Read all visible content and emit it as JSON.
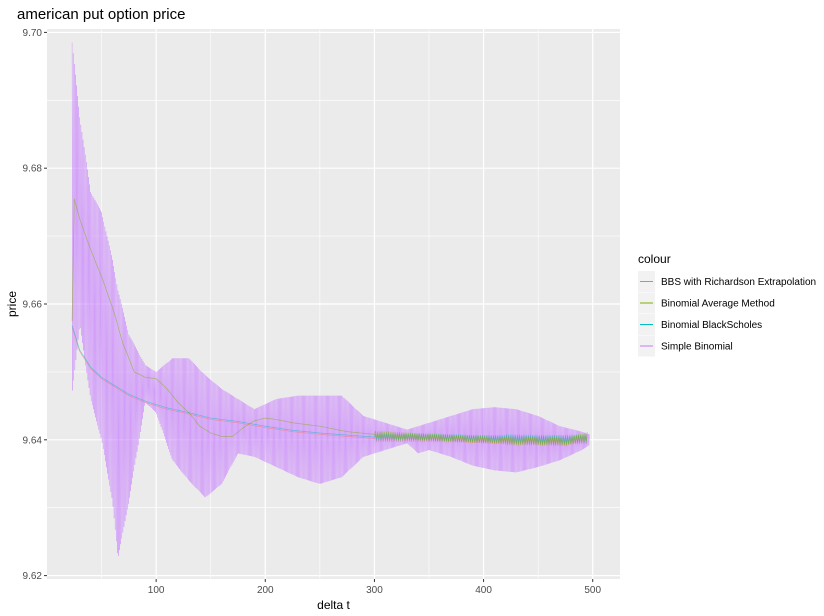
{
  "chart_data": {
    "type": "line",
    "title": "american put option price",
    "xlabel": "delta t",
    "ylabel": "price",
    "xlim": [
      0,
      525
    ],
    "ylim": [
      9.6195,
      9.7005
    ],
    "x_ticks": [
      100,
      200,
      300,
      400,
      500
    ],
    "x_tick_labels": [
      "100",
      "200",
      "300",
      "400",
      "500"
    ],
    "y_ticks": [
      9.62,
      9.64,
      9.66,
      9.68,
      9.7
    ],
    "y_tick_labels": [
      "9.62",
      "9.64",
      "9.66",
      "9.68",
      "9.70"
    ],
    "grid": true,
    "legend_title": "colour",
    "legend_position": "right",
    "series": [
      {
        "name": "BBS with Richardson Extrapolation",
        "color": "#F8766D",
        "points": [
          [
            23,
            9.6565
          ],
          [
            30,
            9.653
          ],
          [
            40,
            9.6505
          ],
          [
            50,
            9.649
          ],
          [
            60,
            9.648
          ],
          [
            75,
            9.6465
          ],
          [
            90,
            9.6455
          ],
          [
            110,
            9.6445
          ],
          [
            130,
            9.6438
          ],
          [
            150,
            9.643
          ],
          [
            175,
            9.6425
          ],
          [
            200,
            9.6418
          ],
          [
            225,
            9.6412
          ],
          [
            250,
            9.6408
          ],
          [
            275,
            9.6405
          ],
          [
            300,
            9.6402
          ],
          [
            325,
            9.6402
          ],
          [
            350,
            9.6402
          ],
          [
            375,
            9.6401
          ],
          [
            400,
            9.64
          ],
          [
            425,
            9.64
          ],
          [
            450,
            9.6399
          ],
          [
            475,
            9.6399
          ],
          [
            495,
            9.64
          ]
        ]
      },
      {
        "name": "Binomial Average Method",
        "color": "#7CAE00",
        "points": [
          [
            23,
            9.6575
          ],
          [
            25,
            9.6755
          ],
          [
            30,
            9.6725
          ],
          [
            40,
            9.668
          ],
          [
            50,
            9.664
          ],
          [
            60,
            9.6595
          ],
          [
            70,
            9.654
          ],
          [
            80,
            9.65
          ],
          [
            90,
            9.6492
          ],
          [
            100,
            9.649
          ],
          [
            110,
            9.6475
          ],
          [
            120,
            9.6455
          ],
          [
            130,
            9.644
          ],
          [
            140,
            9.642
          ],
          [
            150,
            9.641
          ],
          [
            160,
            9.6405
          ],
          [
            170,
            9.6405
          ],
          [
            180,
            9.6418
          ],
          [
            190,
            9.6428
          ],
          [
            200,
            9.6432
          ],
          [
            210,
            9.643
          ],
          [
            225,
            9.6425
          ],
          [
            250,
            9.642
          ],
          [
            275,
            9.6412
          ],
          [
            300,
            9.6408
          ],
          [
            325,
            9.6406
          ],
          [
            350,
            9.6404
          ],
          [
            375,
            9.6402
          ],
          [
            400,
            9.64
          ],
          [
            425,
            9.6398
          ],
          [
            450,
            9.6398
          ],
          [
            475,
            9.6397
          ],
          [
            495,
            9.6405
          ]
        ]
      },
      {
        "name": "Binomial BlackScholes",
        "color": "#00BFC4",
        "points": [
          [
            23,
            9.6568
          ],
          [
            30,
            9.6532
          ],
          [
            40,
            9.6507
          ],
          [
            50,
            9.6492
          ],
          [
            60,
            9.6482
          ],
          [
            75,
            9.6467
          ],
          [
            90,
            9.6457
          ],
          [
            110,
            9.6447
          ],
          [
            130,
            9.644
          ],
          [
            150,
            9.6432
          ],
          [
            175,
            9.6427
          ],
          [
            200,
            9.642
          ],
          [
            225,
            9.6414
          ],
          [
            250,
            9.641
          ],
          [
            275,
            9.6407
          ],
          [
            300,
            9.6404
          ],
          [
            325,
            9.6404
          ],
          [
            350,
            9.6404
          ],
          [
            375,
            9.6403
          ],
          [
            400,
            9.6402
          ],
          [
            425,
            9.6402
          ],
          [
            450,
            9.6401
          ],
          [
            475,
            9.6401
          ],
          [
            495,
            9.6402
          ]
        ]
      },
      {
        "name": "Simple Binomial",
        "color": "#C77CFF",
        "envelope": [
          [
            23,
            9.6465,
            9.6985
          ],
          [
            30,
            9.657,
            9.6875
          ],
          [
            40,
            9.646,
            9.6765
          ],
          [
            50,
            9.64,
            9.6735
          ],
          [
            60,
            9.631,
            9.6665
          ],
          [
            65,
            9.6225,
            9.662
          ],
          [
            75,
            9.631,
            9.6555
          ],
          [
            90,
            9.6455,
            9.651
          ],
          [
            100,
            9.644,
            9.65
          ],
          [
            115,
            9.637,
            9.652
          ],
          [
            130,
            9.634,
            9.652
          ],
          [
            145,
            9.6315,
            9.6495
          ],
          [
            160,
            9.6335,
            9.6475
          ],
          [
            175,
            9.638,
            9.646
          ],
          [
            190,
            9.6375,
            9.6445
          ],
          [
            210,
            9.636,
            9.646
          ],
          [
            230,
            9.6345,
            9.6465
          ],
          [
            250,
            9.6335,
            9.6465
          ],
          [
            270,
            9.6345,
            9.6465
          ],
          [
            290,
            9.6375,
            9.6435
          ],
          [
            310,
            9.6385,
            9.6425
          ],
          [
            330,
            9.6395,
            9.6415
          ],
          [
            340,
            9.638,
            9.642
          ],
          [
            350,
            9.6385,
            9.6425
          ],
          [
            370,
            9.6375,
            9.6435
          ],
          [
            390,
            9.6362,
            9.6445
          ],
          [
            410,
            9.6355,
            9.6448
          ],
          [
            430,
            9.6352,
            9.6445
          ],
          [
            450,
            9.636,
            9.6435
          ],
          [
            470,
            9.637,
            9.642
          ],
          [
            490,
            9.6385,
            9.6412
          ],
          [
            497,
            9.6392,
            9.6408
          ]
        ]
      }
    ]
  }
}
